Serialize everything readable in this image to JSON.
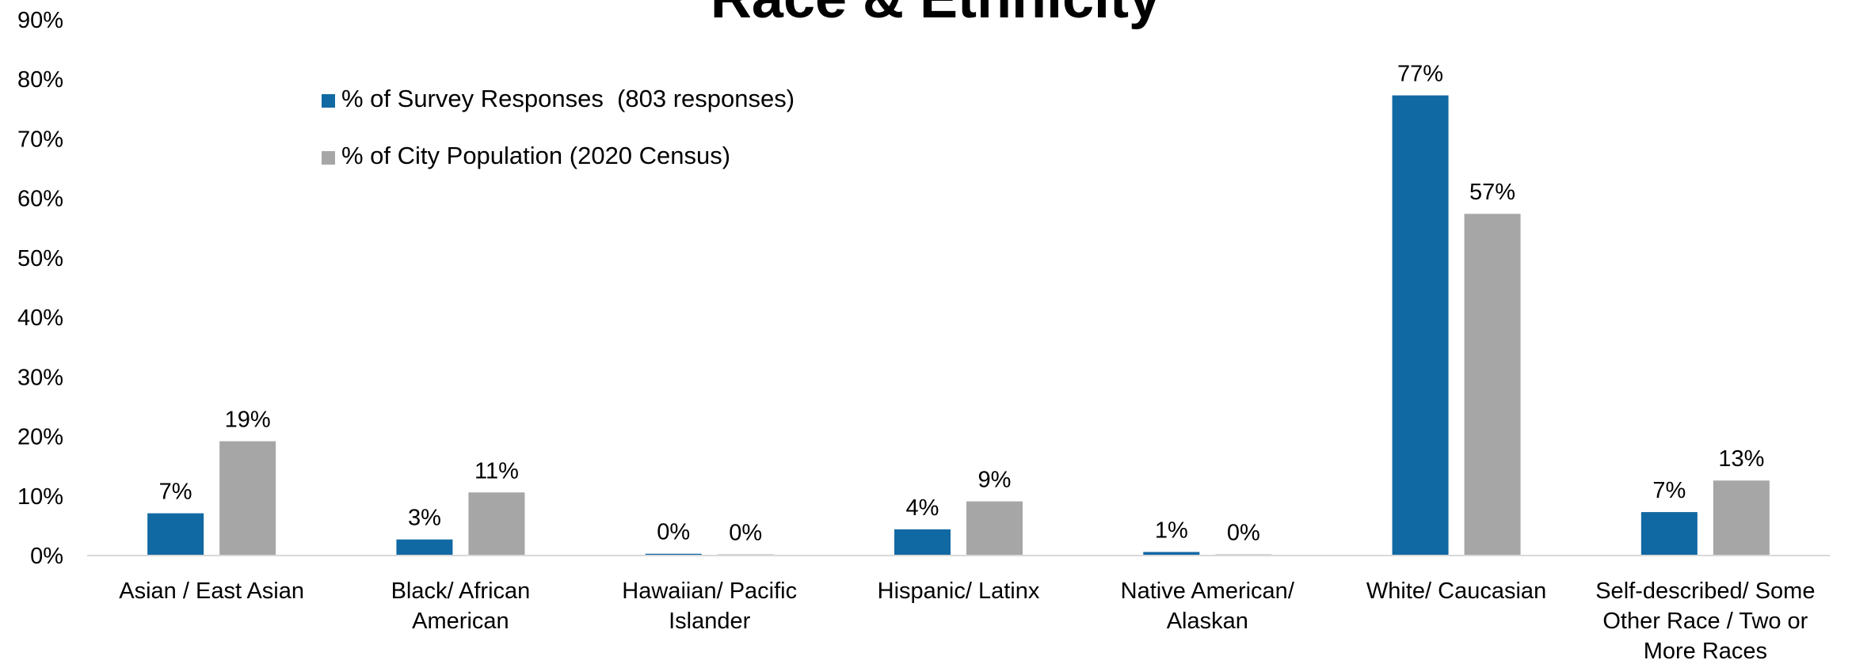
{
  "chart_data": {
    "type": "bar",
    "title": "Race & Ethnicity",
    "xlabel": "",
    "ylabel": "",
    "ylim": [
      0,
      90
    ],
    "yticks": [
      "0%",
      "10%",
      "20%",
      "30%",
      "40%",
      "50%",
      "60%",
      "70%",
      "80%",
      "90%"
    ],
    "categories": [
      [
        "Asian / East Asian"
      ],
      [
        "Black/ African",
        "American"
      ],
      [
        "Hawaiian/ Pacific",
        "Islander"
      ],
      [
        "Hispanic/ Latinx"
      ],
      [
        "Native American/",
        "Alaskan"
      ],
      [
        "White/ Caucasian"
      ],
      [
        "Self-described/ Some",
        "Other Race / Two or",
        "More Races"
      ]
    ],
    "series": [
      {
        "name": "% of Survey Responses  (803 responses)",
        "color": "#1169A3",
        "values": [
          7.1,
          2.7,
          0.3,
          4.4,
          0.6,
          77.3,
          7.3
        ],
        "labels": [
          "7%",
          "3%",
          "0%",
          "4%",
          "1%",
          "77%",
          "7%"
        ]
      },
      {
        "name": "% of City Population (2020 Census)",
        "color": "#A6A6A6",
        "values": [
          19.2,
          10.6,
          0.2,
          9.1,
          0.2,
          57.4,
          12.6
        ],
        "labels": [
          "19%",
          "11%",
          "0%",
          "9%",
          "0%",
          "57%",
          "13%"
        ]
      }
    ],
    "grid": false,
    "legend": "top-left"
  }
}
